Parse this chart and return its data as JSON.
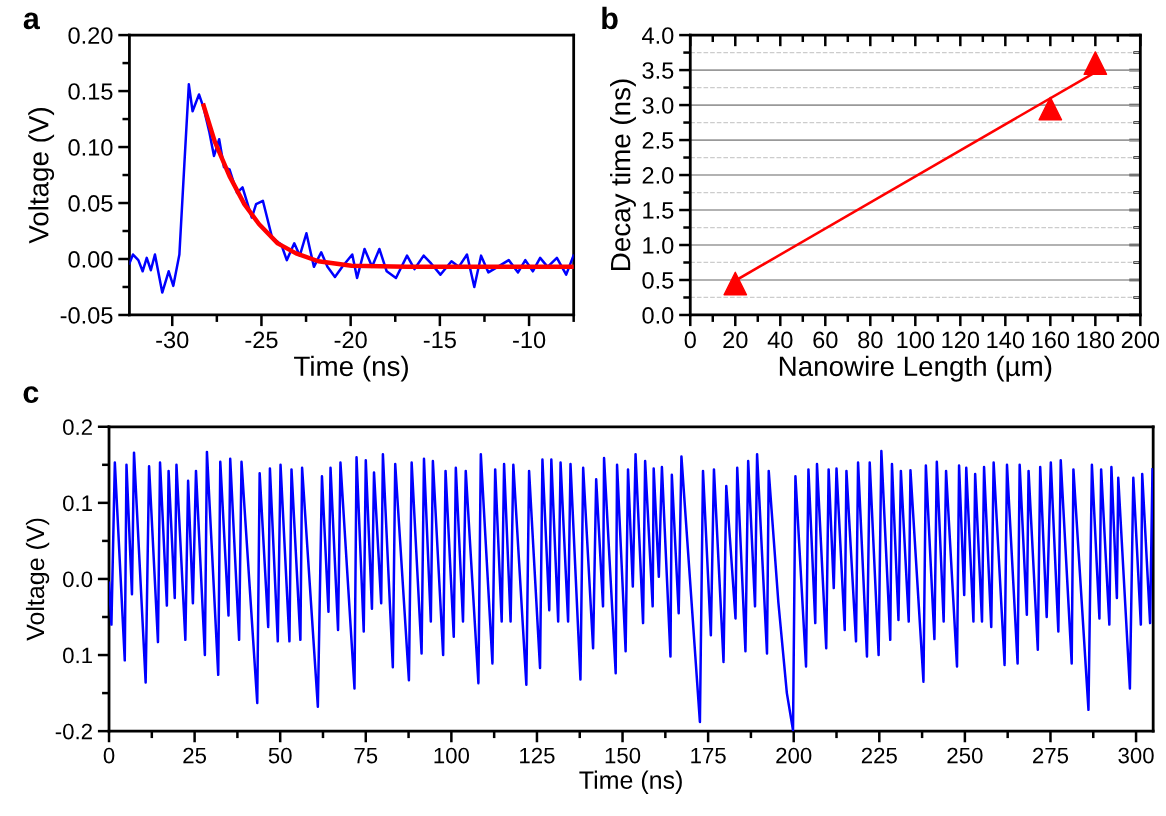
{
  "chart_data": [
    {
      "type": "line",
      "title": "a",
      "xlabel": "Time (ns)",
      "ylabel": "Voltage (V)",
      "xlim": [
        -32.4,
        -7.5
      ],
      "xticks": [
        -30,
        -25,
        -20,
        -15,
        -10
      ],
      "ylim": [
        -0.05,
        0.2
      ],
      "yticks": [
        {
          "value": -0.05,
          "label": "-0.05"
        },
        {
          "value": 0.0,
          "label": "0.00"
        },
        {
          "value": 0.05,
          "label": "0.05"
        },
        {
          "value": 0.1,
          "label": "0.10"
        },
        {
          "value": 0.15,
          "label": "0.15"
        },
        {
          "value": 0.2,
          "label": "0.20"
        }
      ],
      "series": [
        {
          "color": "#0000ff",
          "x": [
            -32.4,
            -32.2,
            -31.9,
            -31.66,
            -31.43,
            -31.2,
            -30.97,
            -30.56,
            -30.2,
            -29.94,
            -29.6,
            -29.32,
            -29.07,
            -28.86,
            -28.5,
            -28.24,
            -27.93,
            -27.66,
            -27.37,
            -27.1,
            -26.79,
            -26.37,
            -26.06,
            -25.54,
            -25.3,
            -24.92,
            -24.4,
            -23.89,
            -23.58,
            -23.16,
            -22.85,
            -22.48,
            -22.06,
            -21.65,
            -21.3,
            -20.88,
            -20.47,
            -19.91,
            -19.64,
            -19.22,
            -18.8,
            -18.39,
            -17.98,
            -17.46,
            -16.84,
            -16.42,
            -15.91,
            -15.49,
            -14.97,
            -14.35,
            -13.94,
            -13.48,
            -13.07,
            -12.69,
            -12.28,
            -11.76,
            -11.14,
            -10.62,
            -10.21,
            -9.79,
            -9.38,
            -8.96,
            -8.44,
            -7.92,
            -7.51
          ],
          "values": [
            -0.004,
            0.004,
            -0.001,
            -0.011,
            0.001,
            -0.01,
            0.004,
            -0.03,
            -0.011,
            -0.024,
            0.004,
            0.085,
            0.156,
            0.132,
            0.147,
            0.135,
            0.114,
            0.092,
            0.107,
            0.082,
            0.08,
            0.059,
            0.064,
            0.037,
            0.049,
            0.052,
            0.019,
            0.013,
            -0.001,
            0.014,
            0.003,
            0.023,
            -0.007,
            0.006,
            -0.007,
            -0.016,
            -0.007,
            0.004,
            -0.017,
            0.009,
            -0.007,
            0.009,
            -0.011,
            -0.017,
            0.003,
            -0.009,
            0.003,
            -0.004,
            -0.014,
            -0.002,
            -0.007,
            0.004,
            -0.025,
            0.003,
            -0.012,
            -0.007,
            -0.001,
            -0.012,
            -0.001,
            -0.011,
            0.001,
            -0.007,
            0.001,
            -0.014,
            0.003
          ]
        },
        {
          "color": "#ff0000",
          "x": [
            -28.24,
            -27.62,
            -26.79,
            -25.96,
            -25.13,
            -24.09,
            -23.06,
            -21.81,
            -19.95,
            -16.84,
            -12.69,
            -7.51
          ],
          "values": [
            0.137,
            0.105,
            0.074,
            0.049,
            0.031,
            0.014,
            0.005,
            -0.002,
            -0.006,
            -0.007,
            -0.007,
            -0.007
          ]
        }
      ]
    },
    {
      "type": "line",
      "title": "b",
      "xlabel": "Nanowire Length (µm)",
      "ylabel": "Decay time (ns)",
      "xlim": [
        0,
        200
      ],
      "xticks": [
        0,
        20,
        40,
        60,
        80,
        100,
        120,
        140,
        160,
        180,
        200
      ],
      "ylim": [
        0,
        4.0
      ],
      "yticks": [
        {
          "value": 0.0,
          "label": "0.0"
        },
        {
          "value": 0.5,
          "label": "0.5"
        },
        {
          "value": 1.0,
          "label": "1.0"
        },
        {
          "value": 1.5,
          "label": "1.5"
        },
        {
          "value": 2.0,
          "label": "2.0"
        },
        {
          "value": 2.5,
          "label": "2.5"
        },
        {
          "value": 3.0,
          "label": "3.0"
        },
        {
          "value": 3.5,
          "label": "3.5"
        },
        {
          "value": 4.0,
          "label": "4.0"
        }
      ],
      "grid": "y",
      "marker": "triangle",
      "series": [
        {
          "type": "line",
          "marker": "none",
          "color": "#ff0000",
          "x": [
            20,
            180
          ],
          "values": [
            0.49,
            3.47
          ]
        },
        {
          "type": "scatter",
          "color": "#ff0000",
          "x": [
            20,
            160,
            180
          ],
          "values": [
            0.45,
            2.95,
            3.6
          ]
        }
      ]
    },
    {
      "type": "line",
      "title": "c",
      "xlabel": "Time (ns)",
      "ylabel": "Voltage (V)",
      "xlim": [
        0,
        305
      ],
      "xticks": [
        0,
        25,
        50,
        75,
        100,
        125,
        150,
        175,
        200,
        225,
        250,
        275,
        300
      ],
      "ylim": [
        -0.2,
        0.2
      ],
      "yticks": [
        {
          "value": -0.2,
          "label": "-0.2"
        },
        {
          "value": -0.1,
          "label": "0.1"
        },
        {
          "value": 0.0,
          "label": "0.0"
        },
        {
          "value": 0.1,
          "label": "0.1"
        },
        {
          "value": 0.2,
          "label": "0.2"
        }
      ],
      "series": [
        {
          "color": "#0000ff",
          "x": [
            0.0,
            0.7,
            1.7,
            4.6,
            5.1,
            6.7,
            7.3,
            10.7,
            11.7,
            14.3,
            14.9,
            16.9,
            17.4,
            19.2,
            19.7,
            22.3,
            23.1,
            24.5,
            25.4,
            28.0,
            28.6,
            31.9,
            32.5,
            34.9,
            35.4,
            38.0,
            38.7,
            43.3,
            44.0,
            46.5,
            47.0,
            49.3,
            50.1,
            52.7,
            53.3,
            55.9,
            56.4,
            61.0,
            62.2,
            64.1,
            64.7,
            66.9,
            67.6,
            71.7,
            72.3,
            74.4,
            75.0,
            76.8,
            77.4,
            79.5,
            80.0,
            82.9,
            83.6,
            87.6,
            88.4,
            91.3,
            92.0,
            94.0,
            94.6,
            97.6,
            98.3,
            100.7,
            101.3,
            103.4,
            104.2,
            107.9,
            108.6,
            112.0,
            112.8,
            114.7,
            115.4,
            117.3,
            118.1,
            121.9,
            122.7,
            125.9,
            126.6,
            128.6,
            129.2,
            131.2,
            131.9,
            134.1,
            134.8,
            137.7,
            138.5,
            141.4,
            142.3,
            144.3,
            144.6,
            148.0,
            148.4,
            150.9,
            151.6,
            153.0,
            153.8,
            156.0,
            156.6,
            158.8,
            159.1,
            160.6,
            161.5,
            164.0,
            164.4,
            166.4,
            167.2,
            172.6,
            173.5,
            175.8,
            176.7,
            179.5,
            180.3,
            183.0,
            183.5,
            185.9,
            186.7,
            188.7,
            189.3,
            192.2,
            192.7,
            195.5,
            198.0,
            199.8,
            200.5,
            203.6,
            204.3,
            206.3,
            206.8,
            209.5,
            210.2,
            211.7,
            212.5,
            214.9,
            215.4,
            218.2,
            218.8,
            221.4,
            222.2,
            224.8,
            225.6,
            228.2,
            228.7,
            230.6,
            231.3,
            233.6,
            234.1,
            237.9,
            238.6,
            241.1,
            241.8,
            243.8,
            244.5,
            247.7,
            248.3,
            249.8,
            250.4,
            252.5,
            253.0,
            255.0,
            255.6,
            257.7,
            258.4,
            261.6,
            262.3,
            265.4,
            266.0,
            268.1,
            268.6,
            271.3,
            272.0,
            273.9,
            275.1,
            277.3,
            278.0,
            281.2,
            281.7,
            286.1,
            287.1,
            289.3,
            289.8,
            292.2,
            292.8,
            294.4,
            294.8,
            298.2,
            299.2,
            301.4,
            301.8,
            304.1,
            304.8
          ],
          "values": [
            -0.005,
            -0.06,
            0.153,
            -0.107,
            0.15,
            -0.02,
            0.166,
            -0.136,
            0.148,
            -0.083,
            0.153,
            -0.035,
            0.142,
            -0.025,
            0.15,
            -0.08,
            0.129,
            -0.032,
            0.142,
            -0.1,
            0.167,
            -0.126,
            0.154,
            -0.048,
            0.158,
            -0.08,
            0.154,
            -0.163,
            0.139,
            -0.063,
            0.145,
            -0.082,
            0.15,
            -0.082,
            0.144,
            -0.08,
            0.146,
            -0.168,
            0.135,
            -0.043,
            0.146,
            -0.067,
            0.153,
            -0.144,
            0.16,
            -0.069,
            0.156,
            -0.039,
            0.14,
            -0.032,
            0.164,
            -0.116,
            0.151,
            -0.133,
            0.153,
            -0.098,
            0.158,
            -0.056,
            0.155,
            -0.1,
            0.142,
            -0.076,
            0.146,
            -0.056,
            0.142,
            -0.137,
            0.164,
            -0.111,
            0.144,
            -0.056,
            0.151,
            -0.056,
            0.15,
            -0.139,
            0.142,
            -0.117,
            0.157,
            -0.041,
            0.157,
            -0.056,
            0.153,
            -0.056,
            0.151,
            -0.132,
            0.146,
            -0.091,
            0.131,
            -0.036,
            0.159,
            -0.124,
            0.15,
            -0.095,
            0.144,
            -0.01,
            0.164,
            -0.058,
            0.155,
            -0.036,
            0.145,
            0.003,
            0.147,
            -0.102,
            0.137,
            -0.045,
            0.161,
            -0.188,
            0.142,
            -0.074,
            0.144,
            -0.109,
            0.122,
            -0.052,
            0.146,
            -0.095,
            0.155,
            -0.036,
            0.164,
            -0.098,
            0.142,
            -0.03,
            -0.15,
            -0.199,
            0.135,
            -0.115,
            0.144,
            -0.058,
            0.151,
            -0.091,
            0.144,
            -0.012,
            0.145,
            -0.067,
            0.142,
            -0.082,
            0.153,
            -0.102,
            0.153,
            -0.1,
            0.168,
            -0.08,
            0.151,
            -0.054,
            0.142,
            -0.056,
            0.143,
            -0.135,
            0.149,
            -0.079,
            0.154,
            -0.056,
            0.142,
            -0.115,
            0.149,
            -0.021,
            0.146,
            -0.056,
            0.138,
            -0.056,
            0.147,
            -0.063,
            0.153,
            -0.113,
            0.15,
            -0.111,
            0.15,
            -0.047,
            0.142,
            -0.093,
            0.147,
            -0.05,
            0.153,
            -0.069,
            0.156,
            -0.111,
            0.144,
            -0.172,
            0.15,
            -0.052,
            0.144,
            -0.06,
            0.147,
            -0.025,
            0.133,
            -0.144,
            0.133,
            -0.06,
            0.138,
            -0.058,
            0.144
          ]
        }
      ]
    }
  ]
}
